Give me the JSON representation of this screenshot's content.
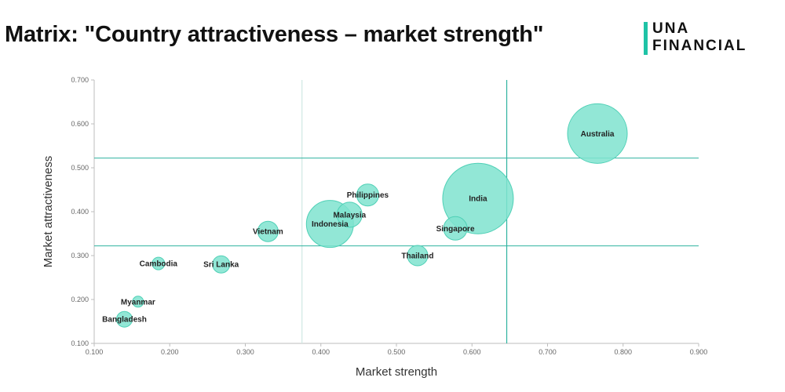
{
  "header": {
    "title": "Matrix: \"Country attractiveness – market strength\"",
    "logo_line1": "UNA",
    "logo_line2": "FINANCIAL"
  },
  "colors": {
    "bubble_fill": "#7fe3cf",
    "bubble_stroke": "#4fd0b6",
    "threshold_line": "#2fb3a0",
    "secondary_line": "#cfe8e3",
    "axis": "#bdbdbd",
    "accent": "#1fc3a6"
  },
  "chart_data": {
    "type": "scatter",
    "variant": "bubble",
    "title": "Matrix: \"Country attractiveness – market strength\"",
    "xlabel": "Market strength",
    "ylabel": "Market attractiveness",
    "xlim": [
      0.1,
      0.9
    ],
    "ylim": [
      0.1,
      0.7
    ],
    "x_ticks": [
      "0.100",
      "0.200",
      "0.300",
      "0.400",
      "0.500",
      "0.600",
      "0.700",
      "0.800",
      "0.900"
    ],
    "y_ticks": [
      "0.100",
      "0.200",
      "0.300",
      "0.400",
      "0.500",
      "0.600",
      "0.700"
    ],
    "grid": false,
    "reference_lines": {
      "vertical": [
        0.375,
        0.646
      ],
      "horizontal": [
        0.322,
        0.522
      ]
    },
    "points": [
      {
        "label": "Australia",
        "x": 0.766,
        "y": 0.578,
        "size": 38
      },
      {
        "label": "India",
        "x": 0.608,
        "y": 0.43,
        "size": 45
      },
      {
        "label": "Singapore",
        "x": 0.578,
        "y": 0.362,
        "size": 15
      },
      {
        "label": "Thailand",
        "x": 0.528,
        "y": 0.3,
        "size": 13
      },
      {
        "label": "Philippines",
        "x": 0.462,
        "y": 0.438,
        "size": 14
      },
      {
        "label": "Malaysia",
        "x": 0.438,
        "y": 0.393,
        "size": 16
      },
      {
        "label": "Indonesia",
        "x": 0.412,
        "y": 0.372,
        "size": 30
      },
      {
        "label": "Vietnam",
        "x": 0.33,
        "y": 0.355,
        "size": 13
      },
      {
        "label": "Sri Lanka",
        "x": 0.268,
        "y": 0.28,
        "size": 11
      },
      {
        "label": "Cambodia",
        "x": 0.185,
        "y": 0.282,
        "size": 8
      },
      {
        "label": "Myanmar",
        "x": 0.158,
        "y": 0.195,
        "size": 7
      },
      {
        "label": "Bangladesh",
        "x": 0.14,
        "y": 0.155,
        "size": 10
      }
    ]
  }
}
